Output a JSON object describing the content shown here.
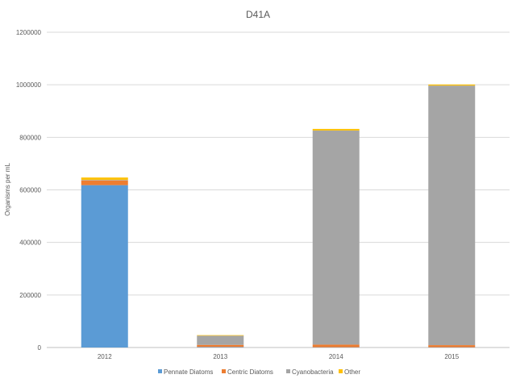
{
  "chart_data": {
    "type": "bar",
    "stacked": true,
    "title": "D41A",
    "xlabel": "",
    "ylabel": "Organisms per mL",
    "categories": [
      "2012",
      "2013",
      "2014",
      "2015"
    ],
    "ylim": [
      0,
      1200000
    ],
    "yticks": [
      "0",
      "200000",
      "400000",
      "600000",
      "800000",
      "1000000",
      "1200000"
    ],
    "grid": true,
    "legend_position": "bottom",
    "series": [
      {
        "name": "Pennate Diatoms",
        "color": "#5B9BD5",
        "values": [
          618000,
          2000,
          1000,
          1000
        ]
      },
      {
        "name": "Centric Diatoms",
        "color": "#ED7D31",
        "values": [
          18000,
          8000,
          10000,
          8000
        ]
      },
      {
        "name": "Cyanobacteria",
        "color": "#A5A5A5",
        "values": [
          2000,
          35000,
          815000,
          988000
        ]
      },
      {
        "name": "Other",
        "color": "#FFC000",
        "values": [
          9000,
          2000,
          6000,
          4000
        ]
      }
    ]
  }
}
